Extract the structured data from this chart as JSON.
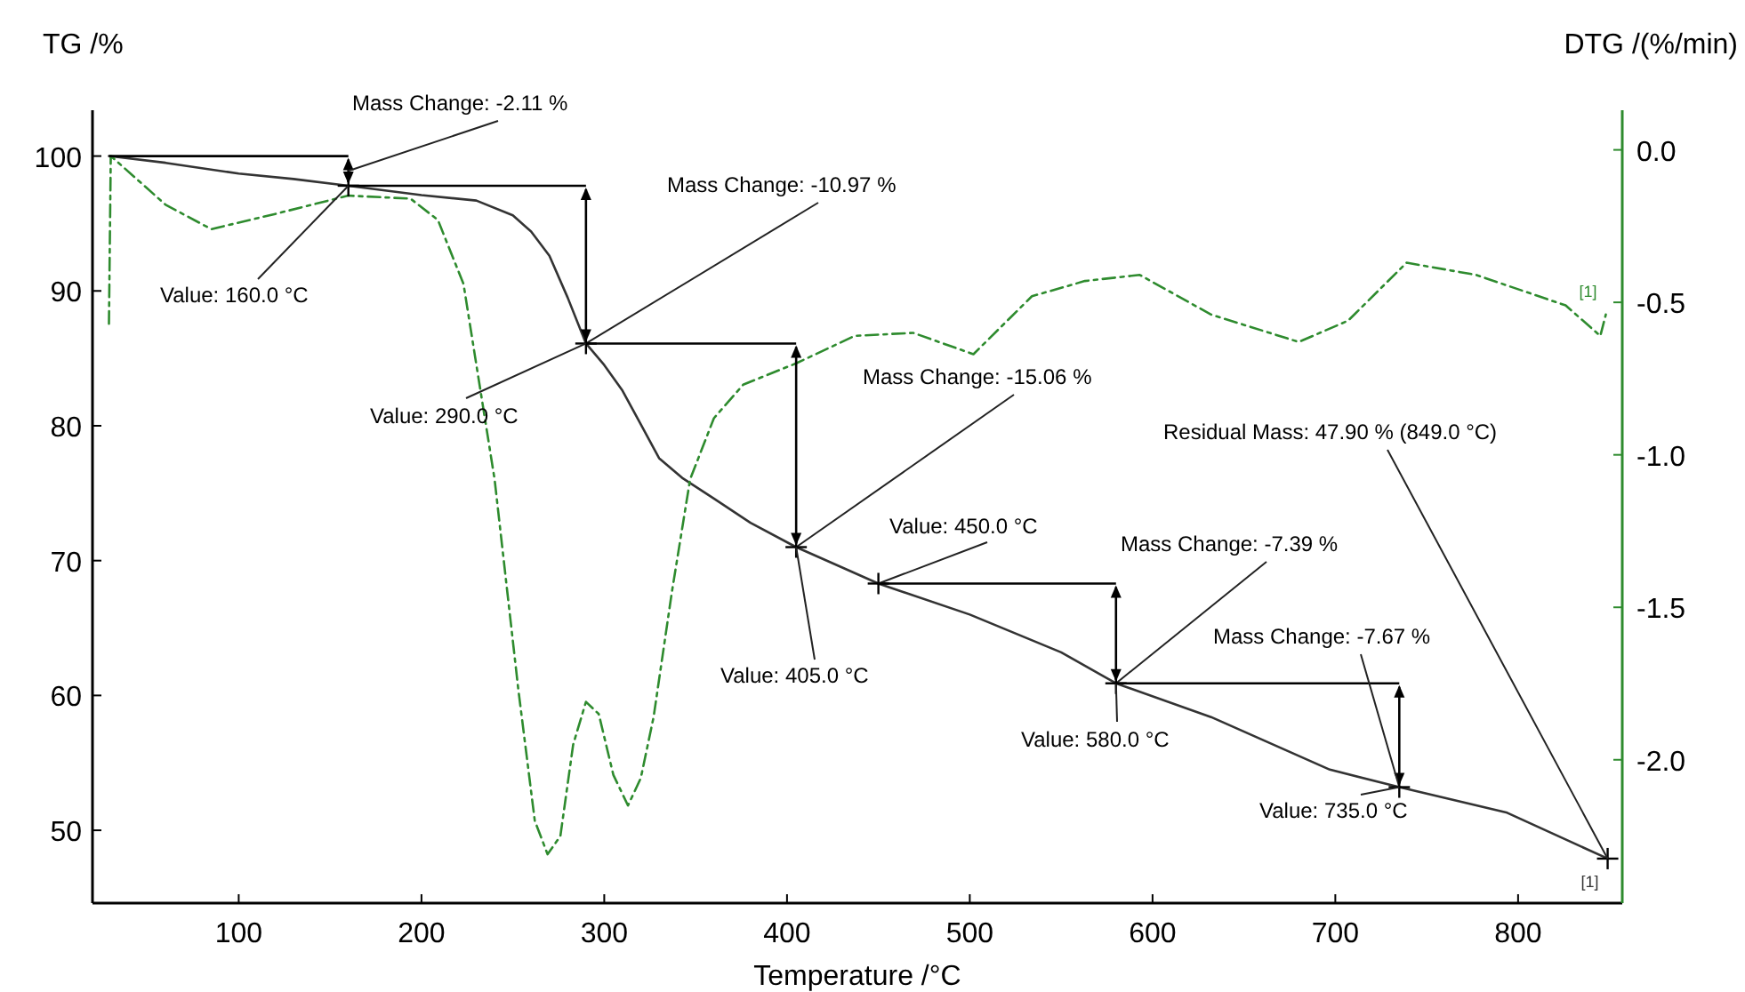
{
  "chart_data": {
    "type": "line",
    "xlabel": "Temperature /°C",
    "ylabel": "TG /%",
    "y2label": "DTG /(%/min)",
    "xlim": [
      20,
      857
    ],
    "xticks": [
      100,
      200,
      300,
      400,
      500,
      600,
      700,
      800
    ],
    "ylim": [
      44.6,
      103.4
    ],
    "yticks": [
      50,
      60,
      70,
      80,
      90,
      100
    ],
    "y2lim": [
      -2.47,
      0.13
    ],
    "y2ticks": [
      {
        "value": -2,
        "label": "-2.0"
      },
      {
        "value": -1.5,
        "label": "-1.5"
      },
      {
        "value": -1,
        "label": "-1.0"
      },
      {
        "value": -0.5,
        "label": "-0.5"
      },
      {
        "value": 0,
        "label": "0.0"
      }
    ],
    "grid": false,
    "legend": false,
    "marker": "none",
    "series": [
      {
        "name": "[1]",
        "color": "#333333",
        "line_style": "solid",
        "x": [
          29,
          60,
          100,
          130,
          160,
          200,
          230,
          250,
          260,
          270,
          280,
          290,
          300,
          310,
          320,
          330,
          343,
          360,
          380,
          405,
          430,
          450,
          500,
          550,
          580,
          632,
          697,
          735,
          794,
          849
        ],
        "values": [
          100,
          99.5,
          98.7,
          98.3,
          97.8,
          97.1,
          96.7,
          95.6,
          94.4,
          92.6,
          89.5,
          86.1,
          84.5,
          82.6,
          80.1,
          77.6,
          76.1,
          74.6,
          72.8,
          71.0,
          69.5,
          68.3,
          66.0,
          63.2,
          60.9,
          58.4,
          54.5,
          53.2,
          51.3,
          47.9
        ]
      },
      {
        "name": "[1]",
        "color": "#2e8b2e",
        "line_style": "dashed",
        "axis": "y2",
        "x": [
          29,
          30,
          60,
          85,
          120,
          160,
          194,
          209,
          223,
          240,
          253,
          262,
          269,
          276,
          283,
          290,
          297,
          305,
          313,
          320,
          327,
          337,
          347,
          360,
          376,
          405,
          437,
          469,
          502,
          534,
          563,
          593,
          632,
          680,
          707,
          739,
          777,
          826,
          845,
          848
        ],
        "values": [
          -0.57,
          -0.02,
          -0.18,
          -0.26,
          -0.21,
          -0.15,
          -0.16,
          -0.23,
          -0.44,
          -1.08,
          -1.77,
          -2.2,
          -2.31,
          -2.25,
          -1.95,
          -1.81,
          -1.85,
          -2.05,
          -2.15,
          -2.06,
          -1.86,
          -1.45,
          -1.08,
          -0.88,
          -0.77,
          -0.7,
          -0.61,
          -0.6,
          -0.67,
          -0.48,
          -0.43,
          -0.41,
          -0.54,
          -0.63,
          -0.56,
          -0.37,
          -0.41,
          -0.51,
          -0.61,
          -0.54
        ]
      }
    ],
    "annotations": [
      {
        "text": "Mass Change: -2.11 %",
        "x": 160,
        "y": 98.9
      },
      {
        "text": "Value: 160.0 °C",
        "x": 160,
        "y": 97.8
      },
      {
        "text": "Mass Change: -10.97 %",
        "x": 290,
        "y": 86.1
      },
      {
        "text": "Value: 290.0 °C",
        "x": 290,
        "y": 86.1
      },
      {
        "text": "Mass Change: -15.06 %",
        "x": 405,
        "y": 71.0
      },
      {
        "text": "Value: 405.0 °C",
        "x": 405,
        "y": 71.0
      },
      {
        "text": "Value: 450.0 °C",
        "x": 450,
        "y": 68.3
      },
      {
        "text": "Mass Change: -7.39 %",
        "x": 580,
        "y": 60.9
      },
      {
        "text": "Value: 580.0 °C",
        "x": 580,
        "y": 60.9
      },
      {
        "text": "Mass Change: -7.67 %",
        "x": 735,
        "y": 53.2
      },
      {
        "text": "Value: 735.0 °C",
        "x": 735,
        "y": 53.2
      },
      {
        "text": "Residual Mass: 47.90 % (849.0 °C)",
        "x": 849,
        "y": 47.9
      }
    ]
  }
}
